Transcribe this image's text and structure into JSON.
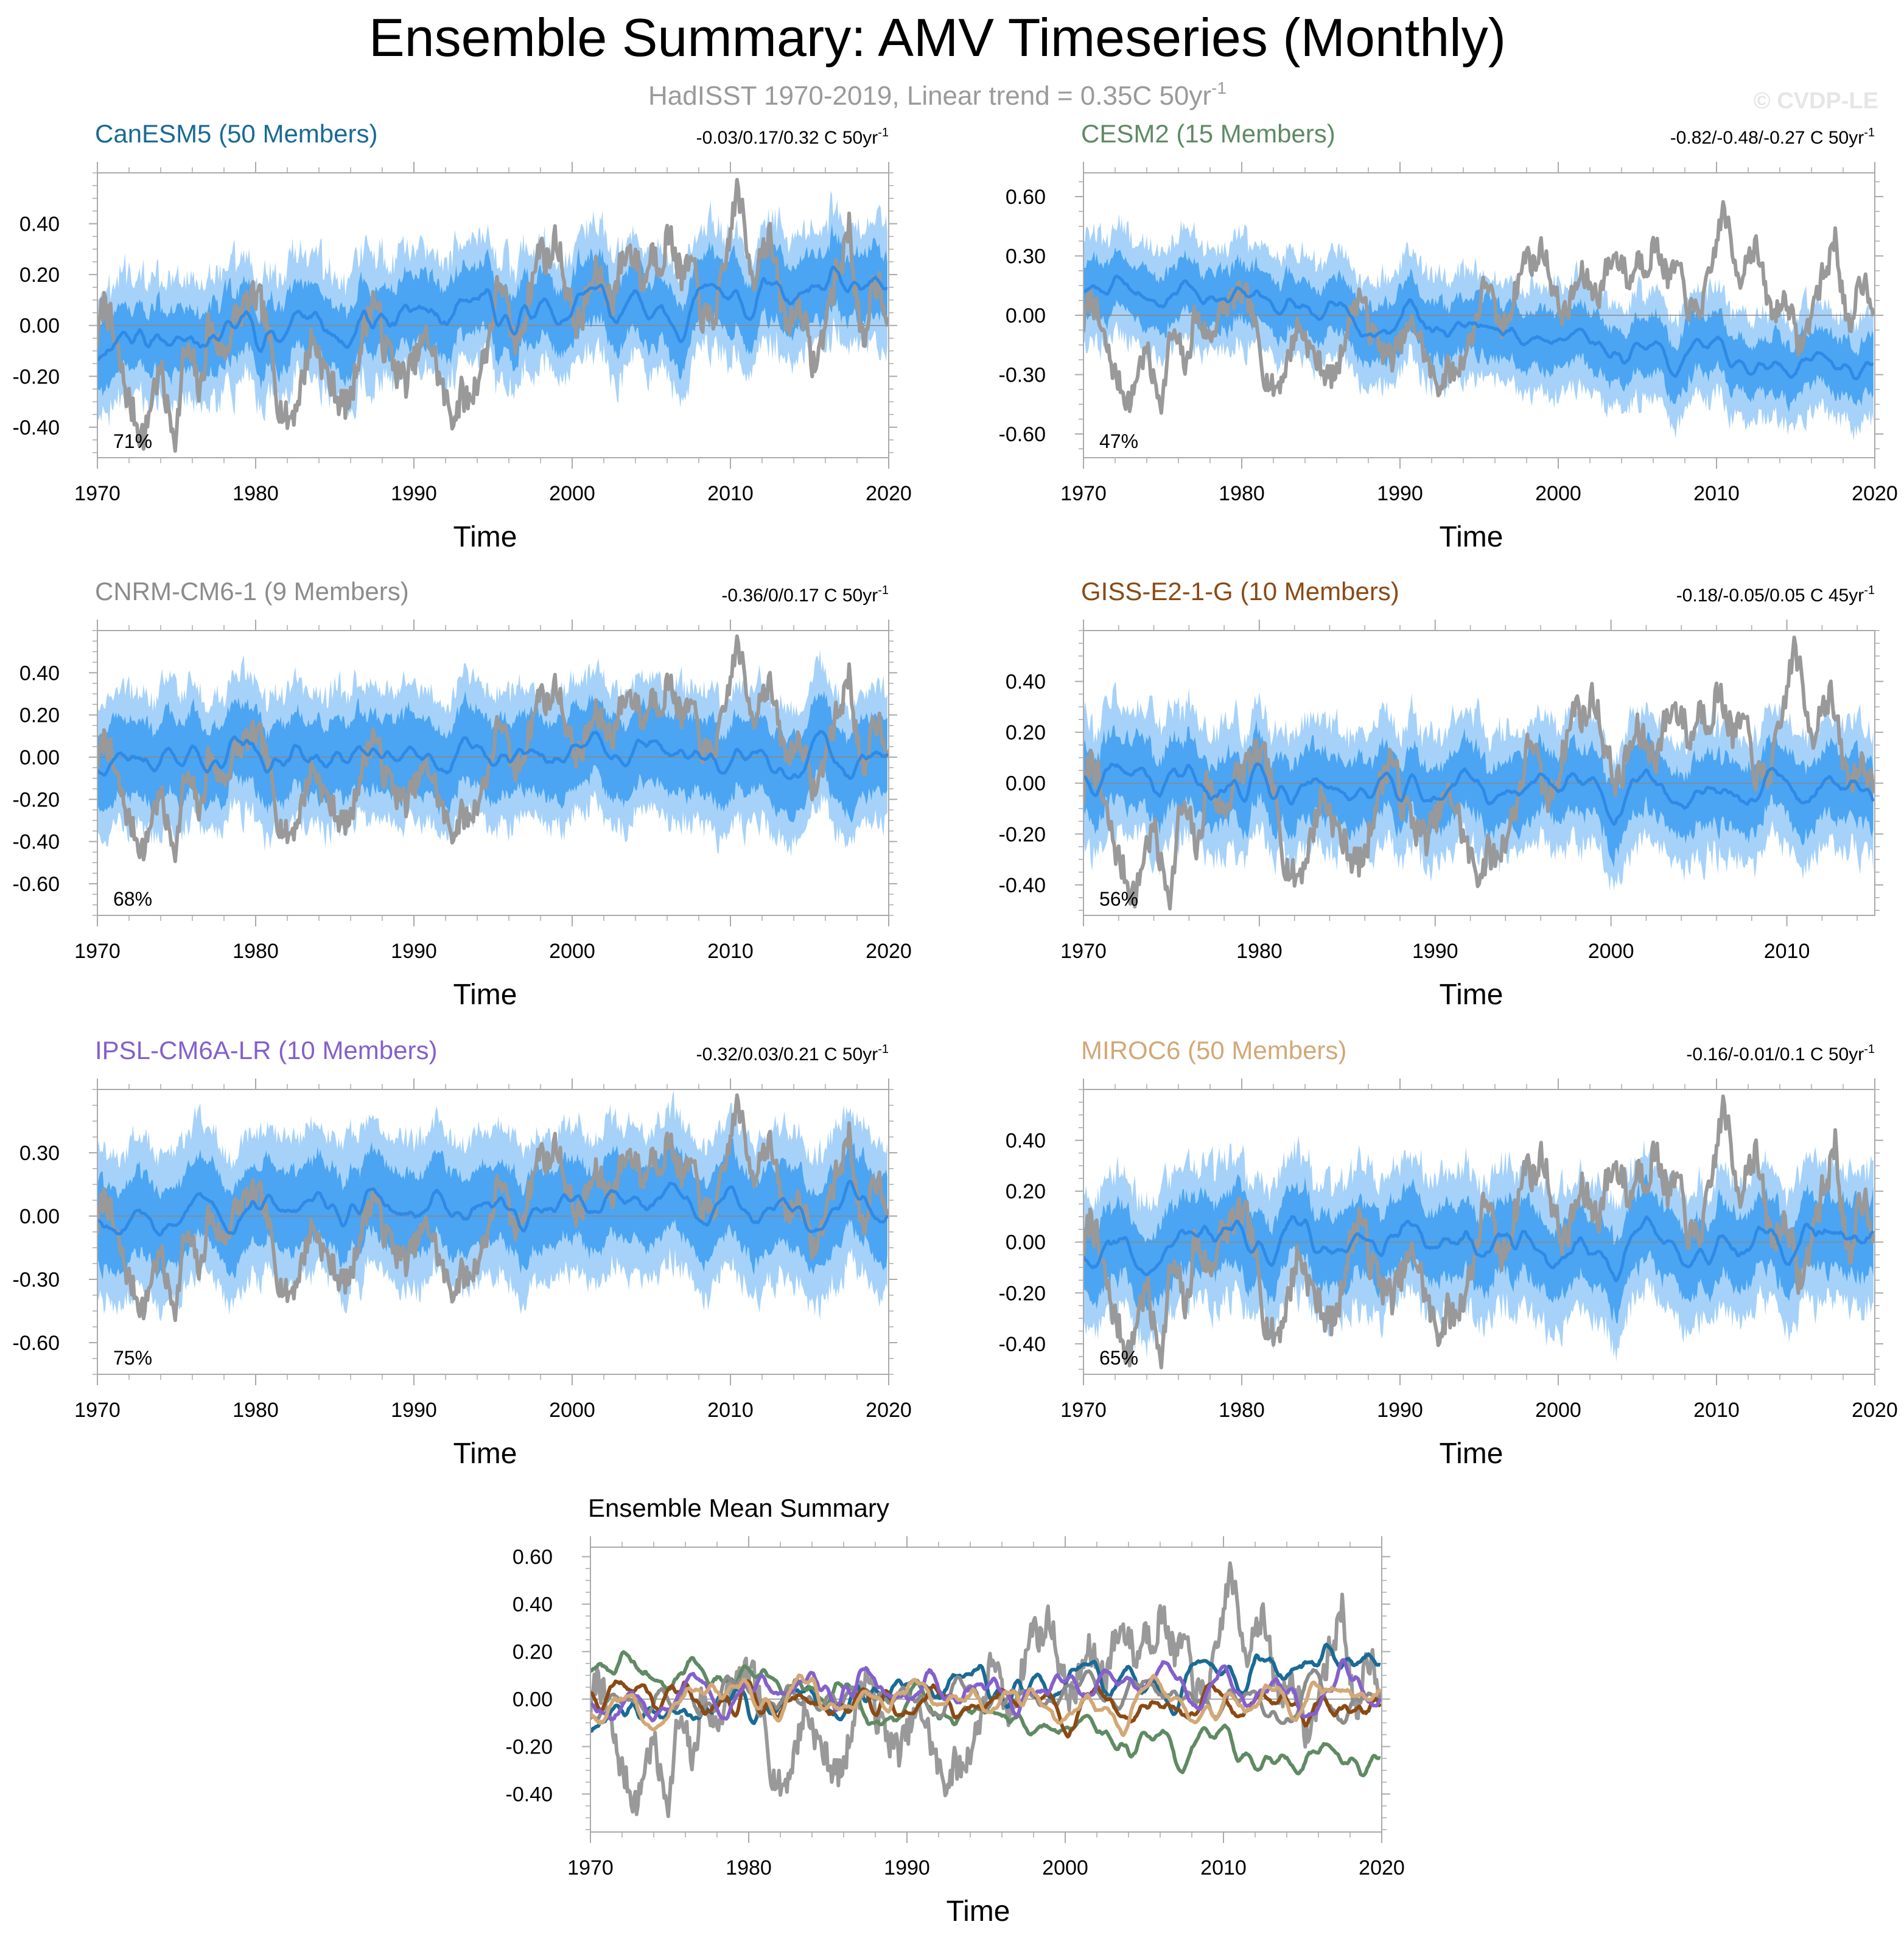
{
  "figure": {
    "title": "Ensemble Summary: AMV Timeseries (Monthly)",
    "subtitle_main": "HadISST 1970-2019, Linear trend = 0.35C 50yr",
    "subtitle_sup": "-1",
    "watermark": "© CVDP-LE"
  },
  "colors": {
    "obs": "#999999",
    "band_outer": "#a6d2fa",
    "band_inner": "#3b9df0",
    "ens_mean": "#2e8ae6",
    "zero_line": "#888888",
    "frame": "#aaaaaa"
  },
  "chart_data": [
    {
      "type": "line",
      "id": "canesm5",
      "title": "CanESM5 (50 Members)",
      "title_color": "#1a6a94",
      "trend_main": "-0.03/0.17/0.32 C 50yr",
      "trend_sup": "-1",
      "percent": "71%",
      "xlabel": "Time",
      "xlim": [
        1970,
        2020
      ],
      "xticks": [
        1970,
        1980,
        1990,
        2000,
        2010,
        2020
      ],
      "xtick_labels": [
        "1970",
        "1980",
        "1990",
        "2000",
        "2010",
        "2020"
      ],
      "ylim": [
        -0.52,
        0.6
      ],
      "yticks": [
        -0.4,
        -0.2,
        0.0,
        0.2,
        0.4
      ],
      "ytick_labels": [
        "-0.40",
        "-0.20",
        "0.00",
        "0.20",
        "0.40"
      ],
      "series": [
        {
          "name": "HadISST observations",
          "color": "#999999"
        },
        {
          "name": "Ensemble mean",
          "color": "#2e8ae6",
          "trend_start": -0.05,
          "trend_end": 0.13,
          "seed": 11
        },
        {
          "name": "Ensemble spread",
          "spread_inner": 0.1,
          "spread_outer": 0.19
        }
      ]
    },
    {
      "type": "line",
      "id": "cesm2",
      "title": "CESM2 (15 Members)",
      "title_color": "#5f8a63",
      "trend_main": "-0.82/-0.48/-0.27 C 50yr",
      "trend_sup": "-1",
      "percent": "47%",
      "xlabel": "Time",
      "xlim": [
        1970,
        2020
      ],
      "xticks": [
        1970,
        1980,
        1990,
        2000,
        2010,
        2020
      ],
      "xtick_labels": [
        "1970",
        "1980",
        "1990",
        "2000",
        "2010",
        "2020"
      ],
      "ylim": [
        -0.72,
        0.72
      ],
      "yticks": [
        -0.6,
        -0.3,
        0.0,
        0.3,
        0.6
      ],
      "ytick_labels": [
        "-0.60",
        "-0.30",
        "0.00",
        "0.30",
        "0.60"
      ],
      "series": [
        {
          "name": "HadISST observations",
          "color": "#999999"
        },
        {
          "name": "Ensemble mean",
          "color": "#2e8ae6",
          "trend_start": 0.17,
          "trend_end": -0.3,
          "seed": 23
        },
        {
          "name": "Ensemble spread",
          "spread_inner": 0.11,
          "spread_outer": 0.22
        }
      ]
    },
    {
      "type": "line",
      "id": "cnrm",
      "title": "CNRM-CM6-1 (9 Members)",
      "title_color": "#8c8c8c",
      "trend_main": "-0.36/0/0.17 C 50yr",
      "trend_sup": "-1",
      "percent": "68%",
      "xlabel": "Time",
      "xlim": [
        1970,
        2020
      ],
      "xticks": [
        1970,
        1980,
        1990,
        2000,
        2010,
        2020
      ],
      "xtick_labels": [
        "1970",
        "1980",
        "1990",
        "2000",
        "2010",
        "2020"
      ],
      "ylim": [
        -0.75,
        0.6
      ],
      "yticks": [
        -0.6,
        -0.4,
        -0.2,
        0.0,
        0.2,
        0.4
      ],
      "ytick_labels": [
        "-0.60",
        "-0.40",
        "-0.20",
        "0.00",
        "0.20",
        "0.40"
      ],
      "series": [
        {
          "name": "HadISST observations",
          "color": "#999999"
        },
        {
          "name": "Ensemble mean",
          "color": "#2e8ae6",
          "trend_start": 0.0,
          "trend_end": 0.01,
          "seed": 37
        },
        {
          "name": "Ensemble spread",
          "spread_inner": 0.15,
          "spread_outer": 0.27
        }
      ]
    },
    {
      "type": "line",
      "id": "giss",
      "title": "GISS-E2-1-G (10 Members)",
      "title_color": "#8a4a14",
      "trend_main": "-0.18/-0.05/0.05 C 45yr",
      "trend_sup": "-1",
      "percent": "56%",
      "xlabel": "Time",
      "xlim": [
        1970,
        2015
      ],
      "xticks": [
        1970,
        1980,
        1990,
        2000,
        2010
      ],
      "xtick_labels": [
        "1970",
        "1980",
        "1990",
        "2000",
        "2010"
      ],
      "ylim": [
        -0.52,
        0.6
      ],
      "yticks": [
        -0.4,
        -0.2,
        0.0,
        0.2,
        0.4
      ],
      "ytick_labels": [
        "-0.40",
        "-0.20",
        "0.00",
        "0.20",
        "0.40"
      ],
      "series": [
        {
          "name": "HadISST observations",
          "color": "#999999"
        },
        {
          "name": "Ensemble mean",
          "color": "#2e8ae6",
          "trend_start": 0.01,
          "trend_end": -0.04,
          "seed": 41
        },
        {
          "name": "Ensemble spread",
          "spread_inner": 0.1,
          "spread_outer": 0.2
        }
      ]
    },
    {
      "type": "line",
      "id": "ipsl",
      "title": "IPSL-CM6A-LR (10 Members)",
      "title_color": "#8460cc",
      "trend_main": "-0.32/0.03/0.21 C 50yr",
      "trend_sup": "-1",
      "percent": "75%",
      "xlabel": "Time",
      "xlim": [
        1970,
        2020
      ],
      "xticks": [
        1970,
        1980,
        1990,
        2000,
        2010,
        2020
      ],
      "xtick_labels": [
        "1970",
        "1980",
        "1990",
        "2000",
        "2010",
        "2020"
      ],
      "ylim": [
        -0.75,
        0.6
      ],
      "yticks": [
        -0.6,
        -0.3,
        0.0,
        0.3
      ],
      "ytick_labels": [
        "-0.60",
        "-0.30",
        "0.00",
        "0.30"
      ],
      "series": [
        {
          "name": "HadISST observations",
          "color": "#999999"
        },
        {
          "name": "Ensemble mean",
          "color": "#2e8ae6",
          "trend_start": 0.02,
          "trend_end": 0.06,
          "seed": 53
        },
        {
          "name": "Ensemble spread",
          "spread_inner": 0.16,
          "spread_outer": 0.3
        }
      ]
    },
    {
      "type": "line",
      "id": "miroc6",
      "title": "MIROC6 (50 Members)",
      "title_color": "#d2a877",
      "trend_main": "-0.16/-0.01/0.1 C 50yr",
      "trend_sup": "-1",
      "percent": "65%",
      "xlabel": "Time",
      "xlim": [
        1970,
        2020
      ],
      "xticks": [
        1970,
        1980,
        1990,
        2000,
        2010,
        2020
      ],
      "xtick_labels": [
        "1970",
        "1980",
        "1990",
        "2000",
        "2010",
        "2020"
      ],
      "ylim": [
        -0.52,
        0.6
      ],
      "yticks": [
        -0.4,
        -0.2,
        0.0,
        0.2,
        0.4
      ],
      "ytick_labels": [
        "-0.40",
        "-0.20",
        "0.00",
        "0.20",
        "0.40"
      ],
      "series": [
        {
          "name": "HadISST observations",
          "color": "#999999"
        },
        {
          "name": "Ensemble mean",
          "color": "#2e8ae6",
          "trend_start": 0.0,
          "trend_end": 0.0,
          "seed": 67
        },
        {
          "name": "Ensemble spread",
          "spread_inner": 0.11,
          "spread_outer": 0.22
        }
      ]
    },
    {
      "type": "line",
      "id": "summary",
      "title": "Ensemble Mean Summary",
      "title_color": "#000000",
      "xlabel": "Time",
      "xlim": [
        1970,
        2020
      ],
      "xticks": [
        1970,
        1980,
        1990,
        2000,
        2010,
        2020
      ],
      "xtick_labels": [
        "1970",
        "1980",
        "1990",
        "2000",
        "2010",
        "2020"
      ],
      "ylim": [
        -0.56,
        0.64
      ],
      "yticks": [
        -0.4,
        -0.2,
        0.0,
        0.2,
        0.4,
        0.6
      ],
      "ytick_labels": [
        "-0.40",
        "-0.20",
        "0.00",
        "0.20",
        "0.40",
        "0.60"
      ],
      "series": [
        {
          "name": "HadISST observations",
          "color": "#999999"
        },
        {
          "name": "CanESM5",
          "color": "#1a6a94",
          "trend_start": -0.05,
          "trend_end": 0.13,
          "seed": 11
        },
        {
          "name": "CESM2",
          "color": "#5f8a63",
          "trend_start": 0.17,
          "trend_end": -0.3,
          "seed": 23
        },
        {
          "name": "CNRM-CM6-1",
          "color": "#8c8c8c",
          "trend_start": 0.0,
          "trend_end": 0.01,
          "seed": 37
        },
        {
          "name": "GISS-E2-1-G",
          "color": "#8a4a14",
          "trend_start": 0.01,
          "trend_end": -0.04,
          "seed": 41
        },
        {
          "name": "IPSL-CM6A-LR",
          "color": "#8460cc",
          "trend_start": 0.02,
          "trend_end": 0.06,
          "seed": 53
        },
        {
          "name": "MIROC6",
          "color": "#d2a877",
          "trend_start": 0.0,
          "trend_end": 0.0,
          "seed": 67
        }
      ]
    }
  ],
  "obs_anchors": [
    [
      1970.0,
      -0.05
    ],
    [
      1970.5,
      0.12
    ],
    [
      1971.0,
      -0.05
    ],
    [
      1971.5,
      -0.18
    ],
    [
      1972.0,
      -0.3
    ],
    [
      1972.5,
      -0.38
    ],
    [
      1973.0,
      -0.45
    ],
    [
      1973.5,
      -0.25
    ],
    [
      1974.0,
      -0.18
    ],
    [
      1974.5,
      -0.35
    ],
    [
      1975.0,
      -0.42
    ],
    [
      1975.5,
      -0.1
    ],
    [
      1976.0,
      -0.15
    ],
    [
      1976.5,
      -0.28
    ],
    [
      1977.0,
      0.0
    ],
    [
      1977.5,
      -0.05
    ],
    [
      1978.0,
      -0.12
    ],
    [
      1978.5,
      0.0
    ],
    [
      1979.0,
      0.05
    ],
    [
      1979.5,
      0.08
    ],
    [
      1980.0,
      0.1
    ],
    [
      1980.5,
      0.05
    ],
    [
      1981.0,
      -0.12
    ],
    [
      1981.5,
      -0.3
    ],
    [
      1982.0,
      -0.38
    ],
    [
      1982.5,
      -0.32
    ],
    [
      1983.0,
      -0.2
    ],
    [
      1983.5,
      -0.05
    ],
    [
      1984.0,
      -0.1
    ],
    [
      1984.5,
      -0.2
    ],
    [
      1985.0,
      -0.25
    ],
    [
      1985.5,
      -0.32
    ],
    [
      1986.0,
      -0.3
    ],
    [
      1986.5,
      -0.1
    ],
    [
      1987.0,
      0.02
    ],
    [
      1987.5,
      0.12
    ],
    [
      1988.0,
      -0.05
    ],
    [
      1988.5,
      -0.12
    ],
    [
      1989.0,
      -0.18
    ],
    [
      1989.5,
      -0.22
    ],
    [
      1990.0,
      -0.15
    ],
    [
      1990.5,
      -0.08
    ],
    [
      1991.0,
      -0.05
    ],
    [
      1991.5,
      -0.18
    ],
    [
      1992.0,
      -0.3
    ],
    [
      1992.5,
      -0.35
    ],
    [
      1993.0,
      -0.28
    ],
    [
      1993.5,
      -0.3
    ],
    [
      1994.0,
      -0.2
    ],
    [
      1994.5,
      -0.12
    ],
    [
      1995.0,
      0.05
    ],
    [
      1995.5,
      0.2
    ],
    [
      1996.0,
      0.0
    ],
    [
      1996.5,
      -0.08
    ],
    [
      1997.0,
      0.05
    ],
    [
      1997.5,
      0.18
    ],
    [
      1998.0,
      0.32
    ],
    [
      1998.5,
      0.25
    ],
    [
      1999.0,
      0.35
    ],
    [
      1999.5,
      0.2
    ],
    [
      2000.0,
      0.05
    ],
    [
      2000.5,
      0.0
    ],
    [
      2001.0,
      0.12
    ],
    [
      2001.5,
      0.2
    ],
    [
      2002.0,
      0.15
    ],
    [
      2002.5,
      0.1
    ],
    [
      2003.0,
      0.22
    ],
    [
      2003.5,
      0.3
    ],
    [
      2004.0,
      0.28
    ],
    [
      2004.5,
      0.15
    ],
    [
      2005.0,
      0.3
    ],
    [
      2005.5,
      0.25
    ],
    [
      2006.0,
      0.35
    ],
    [
      2006.5,
      0.3
    ],
    [
      2007.0,
      0.18
    ],
    [
      2007.5,
      0.25
    ],
    [
      2008.0,
      0.1
    ],
    [
      2008.5,
      0.0
    ],
    [
      2009.0,
      0.05
    ],
    [
      2009.5,
      0.15
    ],
    [
      2010.0,
      0.38
    ],
    [
      2010.5,
      0.55
    ],
    [
      2011.0,
      0.3
    ],
    [
      2011.5,
      0.2
    ],
    [
      2012.0,
      0.32
    ],
    [
      2012.5,
      0.35
    ],
    [
      2013.0,
      0.15
    ],
    [
      2013.5,
      0.0
    ],
    [
      2014.0,
      0.05
    ],
    [
      2014.5,
      0.1
    ],
    [
      2015.0,
      -0.12
    ],
    [
      2015.5,
      -0.15
    ],
    [
      2016.0,
      0.02
    ],
    [
      2016.5,
      0.15
    ],
    [
      2017.0,
      0.25
    ],
    [
      2017.5,
      0.4
    ],
    [
      2018.0,
      0.1
    ],
    [
      2018.5,
      -0.15
    ],
    [
      2019.0,
      0.2
    ],
    [
      2019.5,
      0.15
    ],
    [
      2020.0,
      0.05
    ]
  ]
}
